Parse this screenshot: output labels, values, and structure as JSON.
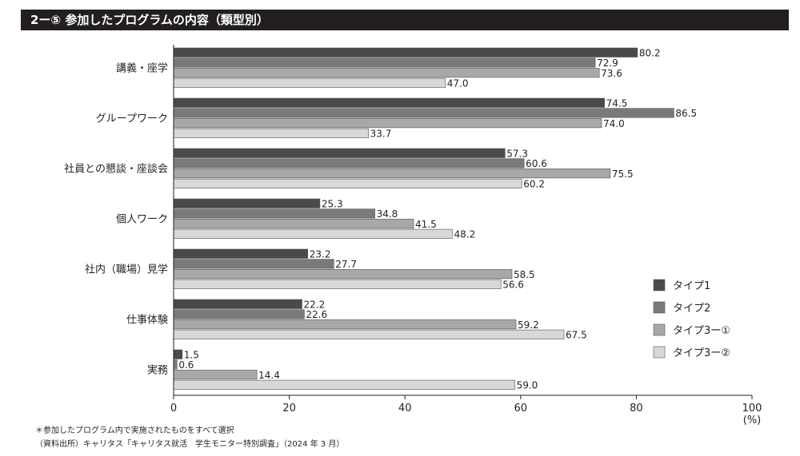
{
  "title": "2ー⑤ 参加したプログラムの内容（類型別）",
  "footnotes": [
    "＊参加したプログラム内で実施されたものをすべて選択",
    "（資料出所）キャリタス「キャリタス就活　学生モニター特別調査」（2024 年 3 月）"
  ],
  "chart_data": {
    "type": "bar",
    "orientation": "horizontal",
    "categories": [
      "講義・座学",
      "グループワーク",
      "社員との懇談・座談会",
      "個人ワーク",
      "社内（職場）見学",
      "仕事体験",
      "実務"
    ],
    "series": [
      {
        "name": "タイプ1",
        "color": "#4a4a4a",
        "values": [
          80.2,
          74.5,
          57.3,
          25.3,
          23.2,
          22.2,
          1.5
        ]
      },
      {
        "name": "タイプ2",
        "color": "#7a7a7a",
        "values": [
          72.9,
          86.5,
          60.6,
          34.8,
          27.7,
          22.6,
          0.6
        ]
      },
      {
        "name": "タイプ3ー①",
        "color": "#a8a8a8",
        "values": [
          73.6,
          74.0,
          75.5,
          41.5,
          58.5,
          59.2,
          14.4
        ]
      },
      {
        "name": "タイプ3ー②",
        "color": "#d8d8d8",
        "values": [
          47.0,
          33.7,
          60.2,
          48.2,
          56.6,
          67.5,
          59.0
        ]
      }
    ],
    "xlim": [
      0,
      100
    ],
    "xticks": [
      "0",
      "20",
      "40",
      "60",
      "80",
      "100"
    ],
    "xunit": "(%)",
    "grid": false,
    "legend_position": "bottom-right"
  }
}
